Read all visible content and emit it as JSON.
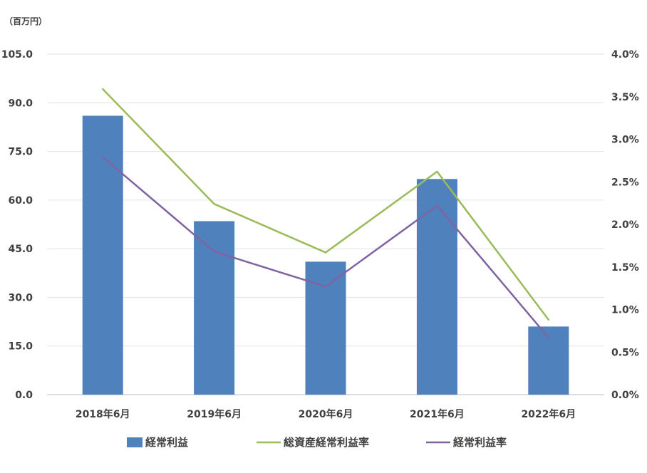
{
  "chart_data": {
    "type": "bar",
    "unit_label": "（百万円）",
    "categories": [
      "2018年6月",
      "2019年6月",
      "2020年6月",
      "2021年6月",
      "2022年6月"
    ],
    "y_left": {
      "ylim": [
        0,
        105
      ],
      "ticks": [
        "0.0",
        "15.0",
        "30.0",
        "45.0",
        "60.0",
        "75.0",
        "90.0",
        "105.0"
      ]
    },
    "y_right": {
      "ylim": [
        0,
        4
      ],
      "ticks": [
        "0.0%",
        "0.5%",
        "1.0%",
        "1.5%",
        "2.0%",
        "2.5%",
        "3.0%",
        "3.5%",
        "4.0%"
      ]
    },
    "grid": true,
    "legend_position": "bottom",
    "series": [
      {
        "name": "経常利益",
        "type": "bar",
        "axis": "left",
        "color": "#4f81bd",
        "values": [
          86.0,
          53.5,
          41.0,
          66.5,
          21.0
        ]
      },
      {
        "name": "総資産経常利益率",
        "type": "line",
        "axis": "right",
        "color": "#9bbb59",
        "values": [
          3.59,
          2.24,
          1.67,
          2.62,
          0.88
        ]
      },
      {
        "name": "経常利益率",
        "type": "line",
        "axis": "right",
        "color": "#8064a2",
        "values": [
          2.79,
          1.68,
          1.27,
          2.22,
          0.67
        ]
      }
    ]
  }
}
